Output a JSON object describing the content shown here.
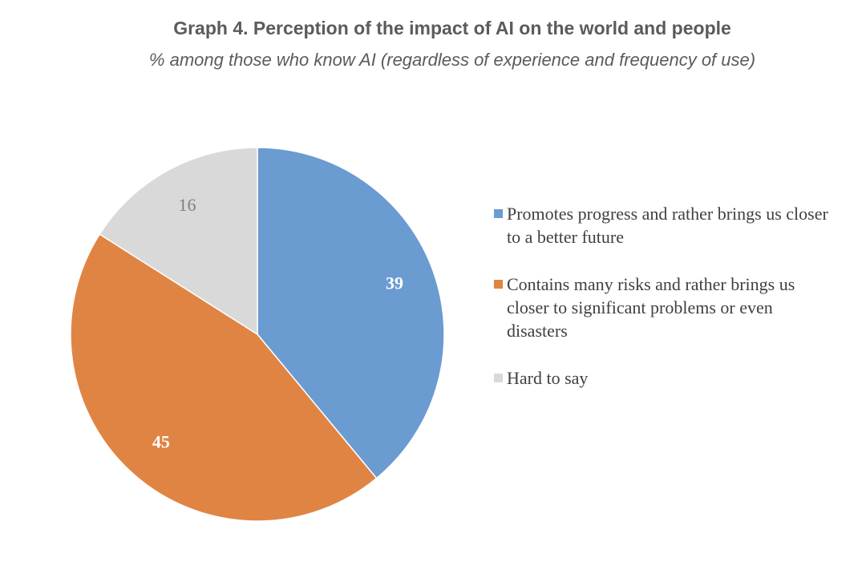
{
  "header": {
    "title": "Graph 4. Perception of the impact of AI on the world and people",
    "subtitle": "% among those who know AI (regardless of experience and frequency of use)"
  },
  "chart_data": {
    "type": "pie",
    "title": "Graph 4. Perception of the impact of AI on the world and people",
    "subtitle": "% among those who know AI (regardless of experience and frequency of use)",
    "labels": [
      "Promotes progress and rather brings us closer to a better future",
      "Contains many risks and rather brings us closer to significant problems or even disasters",
      "Hard to say"
    ],
    "values": [
      39,
      45,
      16
    ],
    "value_labels": [
      "39",
      "45",
      "16"
    ],
    "colors": [
      "#6a9bd1",
      "#e08444",
      "#d9d9d9"
    ],
    "label_colors": [
      "#ffffff",
      "#ffffff",
      "#7f7f7f"
    ],
    "start_angle": "12 o'clock",
    "direction": "clockwise",
    "legend_position": "right"
  },
  "legend": {
    "items": [
      {
        "label": "Promotes progress and rather brings us closer to a better future",
        "color": "#6a9bd1"
      },
      {
        "label": "Contains many risks and rather brings us closer to significant problems or even disasters",
        "color": "#e08444"
      },
      {
        "label": "Hard to say",
        "color": "#d9d9d9"
      }
    ]
  }
}
